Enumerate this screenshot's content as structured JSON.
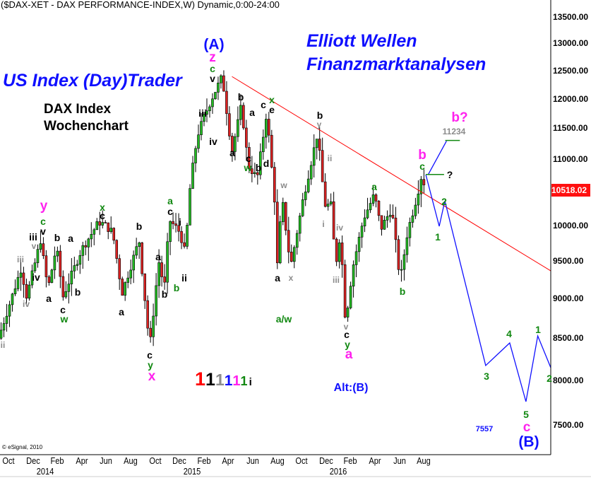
{
  "header": "($DAX-XET - DAX PERFORMANCE-INDEX,W) Dynamic,0:00-24:00",
  "brand": {
    "left": "US Index (Day)Trader",
    "right_line1": "Elliott Wellen",
    "right_line2": "Finanzmarktanalysen"
  },
  "subtitle": {
    "line1": "DAX Index",
    "line2": "Wochenchart"
  },
  "copyright": "© eSignal, 2010",
  "legend_digits": [
    {
      "text": "1",
      "color": "#ff0000"
    },
    {
      "text": "1",
      "color": "#000000"
    },
    {
      "text": "1",
      "color": "#8c8c8c"
    },
    {
      "text": "1",
      "color": "#1010ff"
    },
    {
      "text": "1",
      "color": "#ff22ee"
    },
    {
      "text": "1",
      "color": "#118811"
    },
    {
      "text": "i",
      "color": "#000000"
    }
  ],
  "chart_data": {
    "type": "candlestick",
    "y_scale": "log",
    "ylim": [
      7150,
      14000
    ],
    "yticks": [
      "13500.00",
      "13000.00",
      "12500.00",
      "12000.00",
      "11500.00",
      "11000.00",
      "10000.00",
      "9500.00",
      "9000.00",
      "8500.00",
      "8000.00",
      "7500.00"
    ],
    "ytick_values": [
      13500,
      13000,
      12500,
      12000,
      11500,
      11000,
      10000,
      9500,
      9000,
      8500,
      8000,
      7500
    ],
    "last_price": "10518.02",
    "last_price_value": 10518.02,
    "xticks": [
      "Oct",
      "Dec",
      "Feb",
      "Apr",
      "Jun",
      "Aug",
      "Oct",
      "Dec",
      "Feb",
      "Apr",
      "Jun",
      "Aug",
      "Oct",
      "Dec",
      "Feb",
      "Apr",
      "Jun",
      "Aug"
    ],
    "xtick_dates": [
      "2013-10-01",
      "2013-12-01",
      "2014-02-01",
      "2014-04-01",
      "2014-06-01",
      "2014-08-01",
      "2014-10-01",
      "2014-12-01",
      "2015-02-01",
      "2015-04-01",
      "2015-06-01",
      "2015-08-01",
      "2015-10-01",
      "2015-12-01",
      "2016-02-01",
      "2016-04-01",
      "2016-06-01",
      "2016-08-01"
    ],
    "years": [
      {
        "label": "2014",
        "date": "2014-01-01"
      },
      {
        "label": "2015",
        "date": "2015-01-01"
      },
      {
        "label": "2016",
        "date": "2016-01-01"
      }
    ],
    "colors": {
      "up": "#22bb22",
      "down": "#dd2222",
      "trendline": "#ff0000",
      "projection": "#1010ff",
      "level": "#118811"
    },
    "price_path": [
      [
        "2013-09-06",
        8500
      ],
      [
        "2013-09-13",
        8600
      ],
      [
        "2013-11-02",
        9400
      ],
      [
        "2013-11-16",
        9020
      ],
      [
        "2013-12-20",
        9790
      ],
      [
        "2014-01-08",
        9120
      ],
      [
        "2014-01-29",
        9700
      ],
      [
        "2014-02-15",
        9020
      ],
      [
        "2014-03-30",
        9650
      ],
      [
        "2014-05-13",
        10050
      ],
      [
        "2014-05-27",
        10010
      ],
      [
        "2014-06-17",
        9900
      ],
      [
        "2014-07-10",
        9070
      ],
      [
        "2014-08-22",
        9790
      ],
      [
        "2014-09-18",
        8380
      ],
      [
        "2014-10-10",
        9500
      ],
      [
        "2014-10-24",
        9130
      ],
      [
        "2014-11-06",
        10080
      ],
      [
        "2014-12-02",
        9900
      ],
      [
        "2014-12-15",
        9600
      ],
      [
        "2014-12-28",
        10620
      ],
      [
        "2015-01-15",
        11380
      ],
      [
        "2015-02-02",
        11700
      ],
      [
        "2015-02-20",
        12000
      ],
      [
        "2015-03-16",
        12390
      ],
      [
        "2015-04-10",
        11120
      ],
      [
        "2015-05-03",
        11880
      ],
      [
        "2015-05-20",
        10900
      ],
      [
        "2015-06-12",
        10700
      ],
      [
        "2015-07-05",
        11770
      ],
      [
        "2015-07-26",
        10300
      ],
      [
        "2015-08-01",
        9420
      ],
      [
        "2015-08-13",
        10400
      ],
      [
        "2015-09-04",
        9420
      ],
      [
        "2015-10-05",
        10400
      ],
      [
        "2015-11-10",
        11420
      ],
      [
        "2015-11-28",
        10300
      ],
      [
        "2015-12-15",
        10290
      ],
      [
        "2015-12-24",
        9400
      ],
      [
        "2016-01-06",
        9900
      ],
      [
        "2016-01-19",
        8690
      ],
      [
        "2016-02-06",
        9400
      ],
      [
        "2016-03-03",
        10100
      ],
      [
        "2016-03-30",
        10455
      ],
      [
        "2016-04-16",
        9950
      ],
      [
        "2016-05-12",
        10250
      ],
      [
        "2016-06-03",
        9230
      ],
      [
        "2016-06-21",
        9900
      ],
      [
        "2016-07-13",
        10400
      ],
      [
        "2016-07-27",
        10780
      ],
      [
        "2016-08-05",
        10518
      ]
    ],
    "trendline": [
      [
        "2015-04-10",
        12390
      ],
      [
        "2017-06-13",
        9366
      ]
    ],
    "projection": [
      [
        "2016-08-06",
        10757
      ],
      [
        "2016-09-09",
        9987
      ],
      [
        "2016-09-23",
        10360
      ],
      [
        "2017-01-03",
        8172
      ],
      [
        "2017-03-02",
        8442
      ],
      [
        "2017-04-12",
        7758
      ],
      [
        "2017-05-11",
        8528
      ],
      [
        "2017-06-13",
        8147
      ]
    ],
    "alt_projection": [
      [
        "2016-08-12",
        10760
      ],
      [
        "2016-09-27",
        11290
      ]
    ],
    "levels": [
      {
        "from": "2016-08-06",
        "to": "2016-09-21",
        "price": 10760
      },
      {
        "from": "2016-09-24",
        "to": "2016-10-30",
        "price": 11300
      }
    ],
    "annotations": [
      "(A)",
      "z",
      "c",
      "v",
      "iii",
      "iv",
      "b",
      "a",
      "c",
      "w",
      "b",
      "a",
      "c",
      "x",
      "e",
      "d",
      "b",
      "y",
      "ii",
      "i",
      "iv",
      "iii",
      "v",
      "c",
      "y",
      "a",
      "w",
      "a",
      "x",
      "a/w",
      "a",
      "b",
      "c",
      "b",
      "1",
      "2",
      "?",
      "b?",
      "11234",
      "3",
      "4",
      "5",
      "1",
      "2",
      "c",
      "(B)",
      "7557",
      "Alt:(B)",
      "ii",
      "iii",
      "v",
      "iv",
      "iii",
      "iv",
      "y",
      "c",
      "v",
      "b",
      "a",
      "a",
      "b",
      "c",
      "w",
      "x",
      "c",
      "b",
      "a",
      "a",
      "b",
      "c",
      "y",
      "x",
      "a",
      "c",
      "i",
      "ii",
      "b"
    ]
  }
}
